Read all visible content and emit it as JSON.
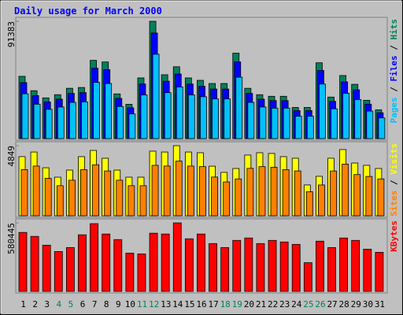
{
  "title": "Daily usage for March 2000",
  "legend_separator": " / ",
  "chart_data": [
    {
      "type": "bar",
      "ylim": [
        0,
        91383
      ],
      "yticks": [
        91383
      ],
      "series": [
        {
          "name": "Hits",
          "color": "#00805c",
          "values": [
            48490,
            37300,
            31710,
            34190,
            39170,
            39790,
            60930,
            59680,
            34810,
            26730,
            47250,
            91383,
            49740,
            55950,
            47250,
            45380,
            42900,
            42900,
            66520,
            39170,
            34190,
            32950,
            32950,
            24250,
            24250,
            59060,
            32330,
            49110,
            42280,
            29840,
            22380
          ]
        },
        {
          "name": "Files",
          "color": "#0000ff",
          "values": [
            43600,
            33500,
            28500,
            30700,
            35200,
            35800,
            54800,
            53700,
            31300,
            24000,
            42500,
            82200,
            44700,
            50300,
            42500,
            40800,
            38600,
            38600,
            59800,
            35200,
            30700,
            29600,
            29600,
            21800,
            21800,
            53100,
            29000,
            44200,
            38000,
            26800,
            20100
          ]
        },
        {
          "name": "Pages",
          "color": "#00c0ff",
          "values": [
            34900,
            26800,
            22800,
            24600,
            28200,
            28600,
            43800,
            42900,
            25000,
            19200,
            34000,
            65700,
            35800,
            40200,
            34000,
            32600,
            30900,
            30900,
            47800,
            28200,
            24600,
            23700,
            23700,
            17400,
            17400,
            42500,
            23200,
            35300,
            30400,
            21400,
            16100
          ]
        }
      ]
    },
    {
      "type": "bar",
      "ylim": [
        0,
        4849
      ],
      "yticks": [
        4849
      ],
      "series": [
        {
          "name": "Visits",
          "color": "#ffff00",
          "values": [
            4090,
            4410,
            3320,
            2670,
            3160,
            4090,
            4520,
            3980,
            3160,
            2670,
            2670,
            4470,
            4410,
            4849,
            4410,
            4360,
            3430,
            3000,
            3270,
            4200,
            4360,
            4310,
            4090,
            3980,
            2130,
            2730,
            3980,
            4580,
            3650,
            3490,
            3270
          ]
        },
        {
          "name": "Sites",
          "color": "#ff8000",
          "values": [
            3190,
            3440,
            2590,
            2080,
            2460,
            3190,
            3530,
            3100,
            2460,
            2080,
            2080,
            3490,
            3440,
            3780,
            3440,
            3400,
            2680,
            2340,
            2550,
            3280,
            3400,
            3360,
            3190,
            3100,
            1660,
            2130,
            3100,
            3570,
            2850,
            2720,
            2550
          ]
        }
      ]
    },
    {
      "type": "bar",
      "ylim": [
        0,
        580445
      ],
      "yticks": [
        580445
      ],
      "categories": [
        "1",
        "2",
        "3",
        "4",
        "5",
        "6",
        "7",
        "8",
        "9",
        "10",
        "11",
        "12",
        "13",
        "14",
        "15",
        "16",
        "17",
        "18",
        "19",
        "20",
        "21",
        "22",
        "23",
        "24",
        "25",
        "26",
        "27",
        "28",
        "29",
        "30",
        "31"
      ],
      "category_colors": [
        "#000000",
        "#000000",
        "#000000",
        "#00805c",
        "#00805c",
        "#000000",
        "#000000",
        "#000000",
        "#000000",
        "#000000",
        "#00805c",
        "#00805c",
        "#000000",
        "#000000",
        "#000000",
        "#000000",
        "#000000",
        "#00805c",
        "#00805c",
        "#000000",
        "#000000",
        "#000000",
        "#000000",
        "#000000",
        "#00805c",
        "#00805c",
        "#000000",
        "#000000",
        "#000000",
        "#000000",
        "#000000"
      ],
      "series": [
        {
          "name": "KBytes",
          "color": "#ff0000",
          "values": [
            499400,
            465700,
            391400,
            337400,
            371200,
            479200,
            573700,
            485900,
            438700,
            323900,
            317200,
            492700,
            485900,
            580445,
            445400,
            485900,
            404900,
            371200,
            431900,
            452200,
            404900,
            431900,
            418400,
            398200,
            243000,
            425200,
            371200,
            452200,
            431900,
            357700,
            330700
          ]
        }
      ]
    }
  ]
}
